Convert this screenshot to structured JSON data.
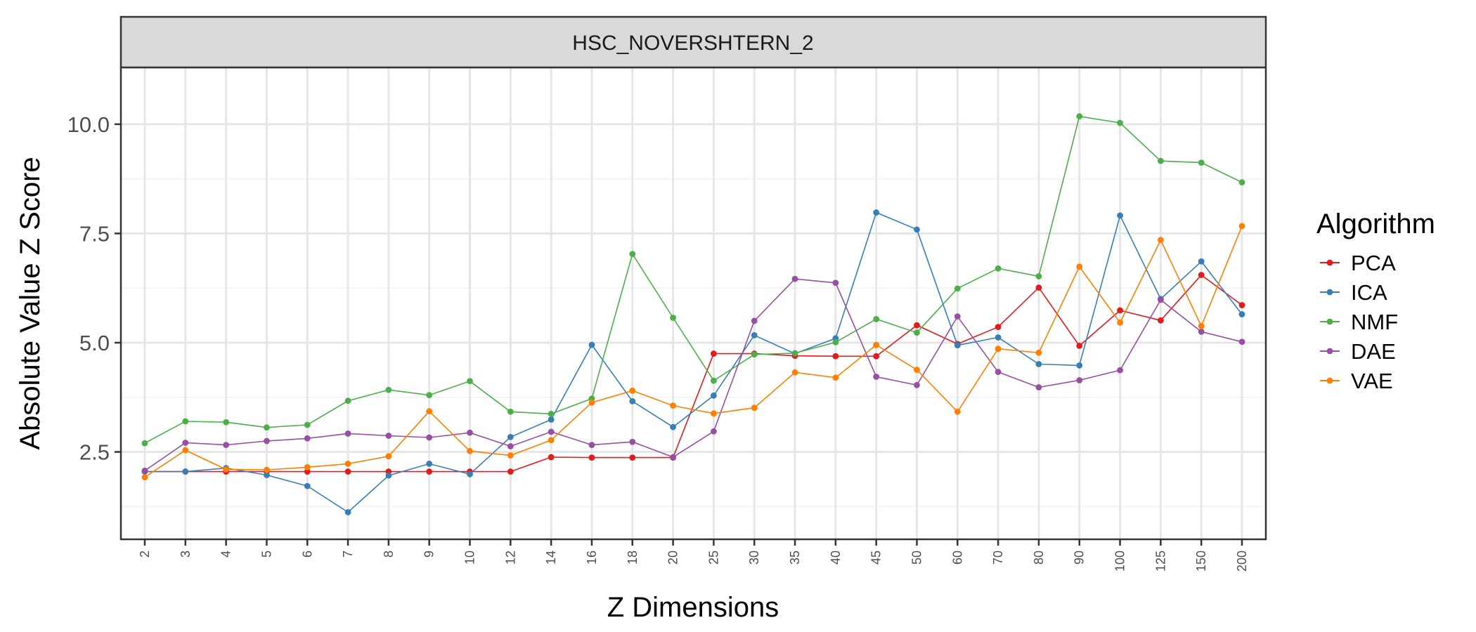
{
  "chart_data": {
    "type": "line",
    "facet_title": "HSC_NOVERSHTERN_2",
    "xlabel": "Z Dimensions",
    "ylabel": "Absolute Value Z Score",
    "categories": [
      "2",
      "3",
      "4",
      "5",
      "6",
      "7",
      "8",
      "9",
      "10",
      "12",
      "14",
      "16",
      "18",
      "20",
      "25",
      "30",
      "35",
      "40",
      "45",
      "50",
      "60",
      "70",
      "80",
      "90",
      "100",
      "125",
      "150",
      "200"
    ],
    "ylim": [
      0.5,
      11.3
    ],
    "y_ticks": [
      2.5,
      5.0,
      7.5,
      10.0
    ],
    "y_tick_labels": [
      "2.5",
      "5.0",
      "7.5",
      "10.0"
    ],
    "grid": true,
    "legend": {
      "title": "Algorithm",
      "position": "right"
    },
    "series": [
      {
        "name": "PCA",
        "color": "#e41a1c",
        "values": [
          2.05,
          2.05,
          2.05,
          2.05,
          2.05,
          2.05,
          2.05,
          2.05,
          2.05,
          2.05,
          2.38,
          2.37,
          2.37,
          2.37,
          4.75,
          4.75,
          4.7,
          4.69,
          4.69,
          5.4,
          4.97,
          5.36,
          6.26,
          4.93,
          5.74,
          5.51,
          6.55,
          5.86
        ]
      },
      {
        "name": "ICA",
        "color": "#377eb8",
        "values": [
          2.05,
          2.05,
          2.13,
          1.97,
          1.72,
          1.12,
          1.96,
          2.23,
          1.99,
          2.84,
          3.24,
          4.95,
          3.66,
          3.07,
          3.79,
          5.17,
          4.75,
          5.1,
          7.98,
          7.59,
          4.94,
          5.12,
          4.51,
          4.48,
          7.91,
          6.0,
          6.86,
          5.65
        ]
      },
      {
        "name": "NMF",
        "color": "#4daf4a",
        "values": [
          2.7,
          3.2,
          3.18,
          3.06,
          3.12,
          3.67,
          3.92,
          3.8,
          4.12,
          3.42,
          3.37,
          3.72,
          7.03,
          5.57,
          4.13,
          4.73,
          4.76,
          5.01,
          5.54,
          5.23,
          6.24,
          6.7,
          6.52,
          10.18,
          10.03,
          9.16,
          9.12,
          8.67
        ]
      },
      {
        "name": "DAE",
        "color": "#984ea3",
        "values": [
          2.07,
          2.71,
          2.66,
          2.75,
          2.81,
          2.92,
          2.87,
          2.83,
          2.94,
          2.63,
          2.96,
          2.66,
          2.73,
          2.38,
          2.97,
          5.5,
          6.46,
          6.37,
          4.22,
          4.03,
          5.6,
          4.33,
          3.98,
          4.14,
          4.37,
          5.98,
          5.25,
          5.02
        ]
      },
      {
        "name": "VAE",
        "color": "#ff7f00",
        "values": [
          1.92,
          2.54,
          2.1,
          2.09,
          2.15,
          2.23,
          2.4,
          3.43,
          2.52,
          2.42,
          2.77,
          3.63,
          3.9,
          3.56,
          3.38,
          3.51,
          4.32,
          4.2,
          4.95,
          4.38,
          3.42,
          4.86,
          4.77,
          6.74,
          5.46,
          7.35,
          5.38,
          7.67
        ]
      }
    ]
  }
}
